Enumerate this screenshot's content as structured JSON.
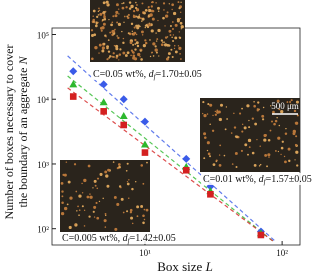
{
  "chart_data": {
    "type": "scatter",
    "ylabel": [
      "Number of boxes necessary to cover",
      "the boundary of an aggregate"
    ],
    "ylabel_symbol": "N",
    "xlabel": "Box size",
    "xlabel_symbol": "L",
    "log_x": true,
    "log_y": true,
    "xlim": [
      2.1,
      135
    ],
    "ylim": [
      56,
      126000
    ],
    "xticks": [
      {
        "value": 10,
        "label": "10¹"
      },
      {
        "value": 100,
        "label": "10²"
      }
    ],
    "yticks": [
      {
        "value": 100,
        "label": "10²"
      },
      {
        "value": 1000,
        "label": "10³"
      },
      {
        "value": 10000,
        "label": "10⁴"
      },
      {
        "value": 100000,
        "label": "10⁵"
      }
    ],
    "x": [
      3,
      5,
      7,
      10,
      20,
      30,
      70
    ],
    "series": [
      {
        "marker": "diamond",
        "color": "#3a5be8",
        "values": [
          27000,
          17000,
          10000,
          4500,
          1200,
          450,
          90
        ]
      },
      {
        "marker": "triangle",
        "color": "#2db82d",
        "values": [
          17000,
          9000,
          5500,
          2000,
          900,
          380,
          85
        ]
      },
      {
        "marker": "square",
        "color": "#d42020",
        "values": [
          11000,
          6500,
          4000,
          1500,
          800,
          340,
          80
        ]
      }
    ],
    "annotations": [
      {
        "prefix": "C=0.05 wt%, ",
        "symbol": "d",
        "subscript": "f",
        "suffix": "=1.70±0.05"
      },
      {
        "prefix": "C=0.01 wt%, ",
        "symbol": "d",
        "subscript": "f",
        "suffix": "=1.57±0.05"
      },
      {
        "prefix": "C=0.005 wt%, ",
        "symbol": "d",
        "subscript": "f",
        "suffix": "=1.42±0.05"
      }
    ],
    "scale_bar": "500 μm"
  }
}
